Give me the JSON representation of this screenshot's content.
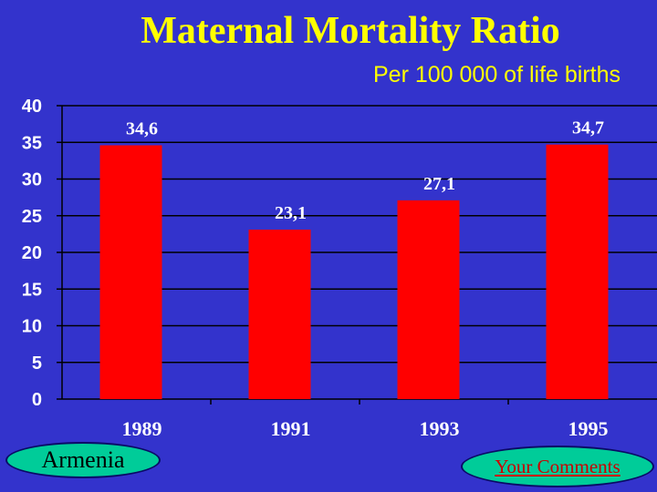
{
  "title": "Maternal Mortality Ratio",
  "subtitle": "Per 100 000 of life births",
  "country": "Armenia",
  "comments_link": "Your Comments",
  "colors": {
    "background": "#3333cc",
    "title": "#ffff00",
    "bar": "#ff0000",
    "axis_text": "#ffffff",
    "button_fill": "#00cc99",
    "link_text": "#cc0000"
  },
  "chart_data": {
    "type": "bar",
    "categories": [
      "1989",
      "1991",
      "1993",
      "1995"
    ],
    "values": [
      34.6,
      23.1,
      27.1,
      34.7
    ],
    "data_labels": [
      "34,6",
      "23,1",
      "27,1",
      "34,7"
    ],
    "title": "Maternal Mortality Ratio",
    "ylabel": "",
    "xlabel": "",
    "ylim": [
      0,
      40
    ],
    "yticks": [
      0,
      5,
      10,
      15,
      20,
      25,
      30,
      35,
      40
    ],
    "grid": true,
    "legend": "none"
  }
}
